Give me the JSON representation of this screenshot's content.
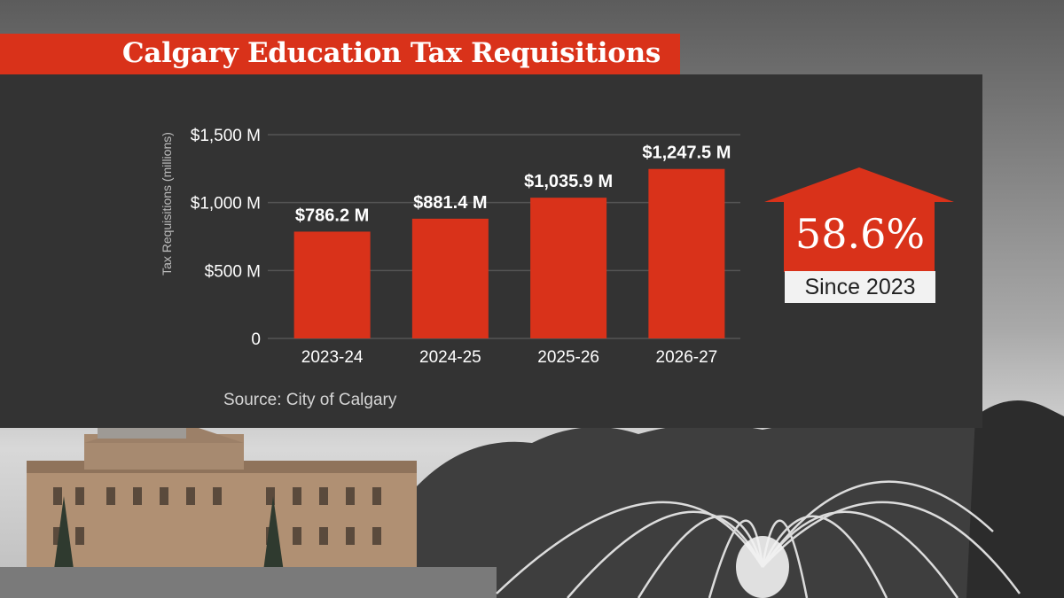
{
  "title": "Calgary Education Tax Requisitions",
  "source": "Source: City of Calgary",
  "highlight": {
    "percent": "58.6%",
    "caption": "Since 2023"
  },
  "colors": {
    "accent": "#d9321a",
    "panel": "#333333",
    "text": "#ffffff",
    "grid": "#555555"
  },
  "chart_data": {
    "type": "bar",
    "title": "Calgary Education Tax Requisitions",
    "xlabel": "",
    "ylabel": "Tax Requisitions (millions)",
    "categories": [
      "2023-24",
      "2024-25",
      "2025-26",
      "2026-27"
    ],
    "values": [
      786.2,
      881.4,
      1035.9,
      1247.5
    ],
    "value_labels": [
      "$786.2 M",
      "$881.4 M",
      "$1,035.9 M",
      "$1,247.5 M"
    ],
    "ylim": [
      0,
      1500
    ],
    "yticks": [
      {
        "value": 0,
        "label": "0"
      },
      {
        "value": 500,
        "label": "$500 M"
      },
      {
        "value": 1000,
        "label": "$1,000 M"
      },
      {
        "value": 1500,
        "label": "$1,500 M"
      }
    ],
    "grid": true
  }
}
